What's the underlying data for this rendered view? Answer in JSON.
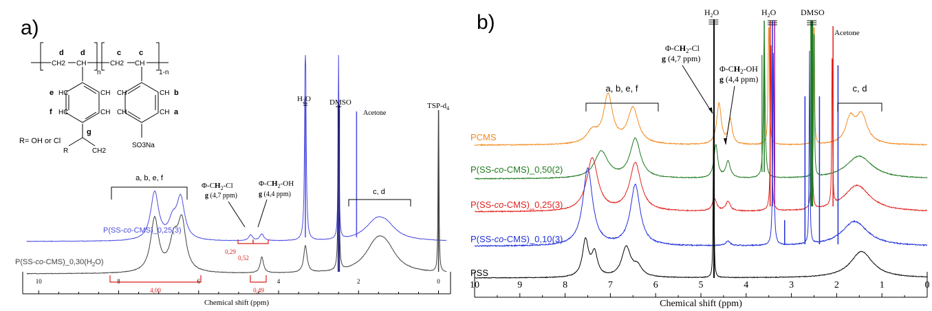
{
  "panels": {
    "a": {
      "label": "a)"
    },
    "b": {
      "label": "b)"
    }
  },
  "colors": {
    "orange": "#f28a1e",
    "green": "#1f7a1f",
    "red": "#e0201c",
    "blue": "#1f2fd8",
    "black": "#000000",
    "grey": "#404040",
    "peak_red": "#d8201c"
  },
  "structure": {
    "labels": [
      "d",
      "d",
      "c",
      "c",
      "n",
      "1-n",
      "e",
      "f",
      "g",
      "b",
      "a"
    ],
    "r_group": "R= OH or Cl",
    "ch2_labels": [
      "CH2",
      "CH",
      "CH2",
      "CH"
    ],
    "ring_labels": [
      "HC",
      "CH",
      "HC",
      "CH",
      "CH",
      "CH",
      "CH",
      "CH"
    ],
    "substituents": [
      "CH2",
      "R",
      "SO3Na"
    ]
  },
  "chart_data": [
    {
      "type": "line",
      "panel": "a",
      "xlabel": "Chemical shift (ppm)",
      "xlim": [
        10.4,
        -0.3
      ],
      "xticks": [
        "10",
        "8",
        "6",
        "4",
        "2",
        "0"
      ],
      "series": [
        {
          "name": "P(SS-co-CMS)_0,25(3)",
          "color": "#4a4ae0",
          "peaks": [
            [
              7.1,
              1.0
            ],
            [
              6.6,
              0.3
            ],
            [
              6.4,
              0.9
            ],
            [
              4.7,
              0.12
            ],
            [
              4.4,
              0.13
            ],
            [
              3.3,
              3.5
            ],
            [
              2.5,
              4.0
            ],
            [
              2.05,
              2.5
            ],
            [
              1.5,
              0.5
            ]
          ]
        },
        {
          "name": "P(SS-co-CMS)_0,30(H2O)",
          "color": "#404040",
          "peaks": [
            [
              7.1,
              1.0
            ],
            [
              6.6,
              0.55
            ],
            [
              6.4,
              0.95
            ],
            [
              4.4,
              0.28
            ],
            [
              3.3,
              0.45
            ],
            [
              2.5,
              3.0
            ],
            [
              1.5,
              0.5
            ],
            [
              0.0,
              2.5
            ]
          ]
        }
      ],
      "annotations": {
        "aromatic": "a, b, e, f",
        "cl": {
          "label": "Φ-CH2-Cl",
          "sub": "g (4,7 ppm)"
        },
        "oh": {
          "label": "Φ-CH2-OH",
          "sub": "g (4,4 ppm)"
        },
        "aliphatic": "c, d",
        "solvents": [
          "H2O",
          "DMSO",
          "Acetone",
          "TSP-d4"
        ],
        "integrals": [
          "4,00",
          "0,49",
          "0,29",
          "0,52"
        ]
      }
    },
    {
      "type": "line",
      "panel": "b",
      "xlabel": "Chemical shift (ppm)",
      "xlim": [
        10,
        0
      ],
      "xticks": [
        "10",
        "9",
        "8",
        "7",
        "6",
        "5",
        "4",
        "3",
        "2",
        "1",
        "0"
      ],
      "series": [
        {
          "name": "PCMS",
          "color": "#f28a1e"
        },
        {
          "name": "P(SS-co-CMS)_0,50(2)",
          "color": "#1f7a1f"
        },
        {
          "name": "P(SS-co-CMS)_0,25(3)",
          "color": "#e0201c"
        },
        {
          "name": "P(SS-co-CMS)_0,10(3)",
          "color": "#1f2fd8"
        },
        {
          "name": "PSS",
          "color": "#000000"
        }
      ],
      "annotations": {
        "aromatic": "a, b, e, f",
        "cl": {
          "label": "Φ-CH2-Cl",
          "sub": "g (4,7 ppm)"
        },
        "oh": {
          "label": "Φ-CH2-OH",
          "sub": "g (4,4 ppm)"
        },
        "aliphatic": "c, d",
        "solvents": [
          "H2O",
          "H2O",
          "DMSO",
          "Acetone"
        ]
      }
    }
  ]
}
